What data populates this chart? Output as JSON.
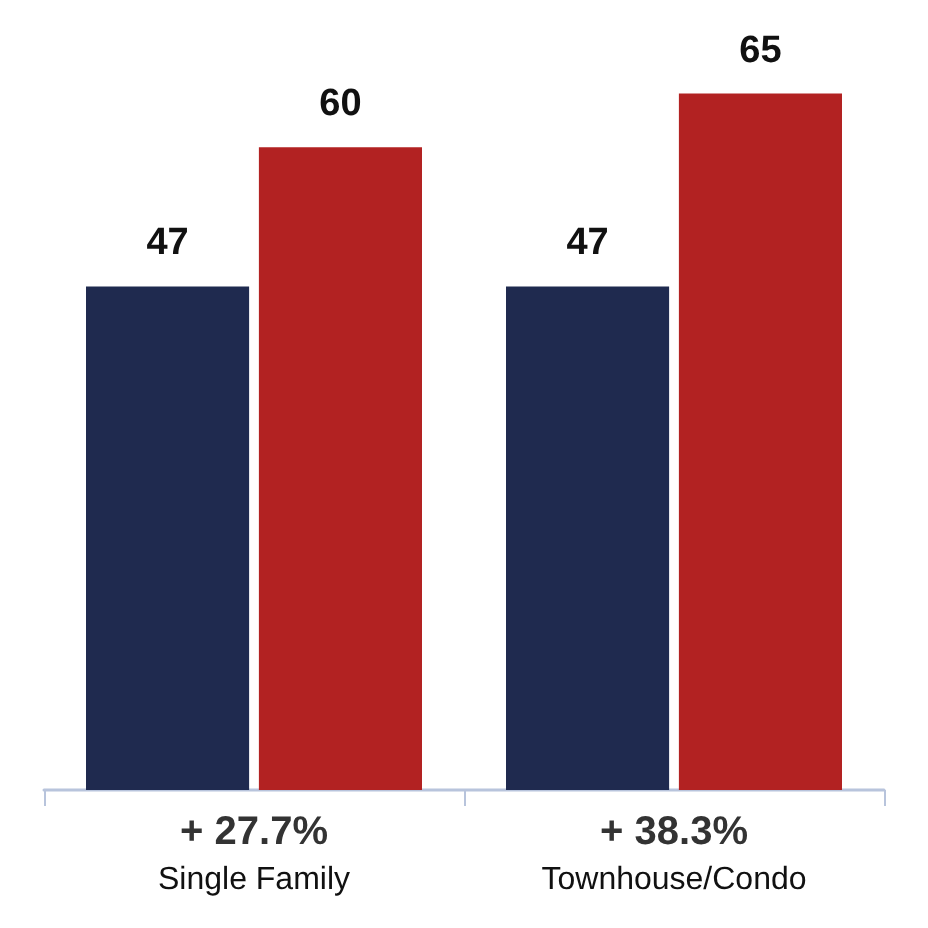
{
  "chart_data": {
    "type": "bar",
    "categories": [
      "Single Family",
      "Townhouse/Condo"
    ],
    "series": [
      {
        "color": "#1f2a4f",
        "values": [
          47,
          47
        ]
      },
      {
        "color": "#b22222",
        "values": [
          60,
          65
        ]
      }
    ],
    "data_labels": true,
    "annotations": [
      "+ 27.7%",
      "+ 38.3%"
    ]
  }
}
